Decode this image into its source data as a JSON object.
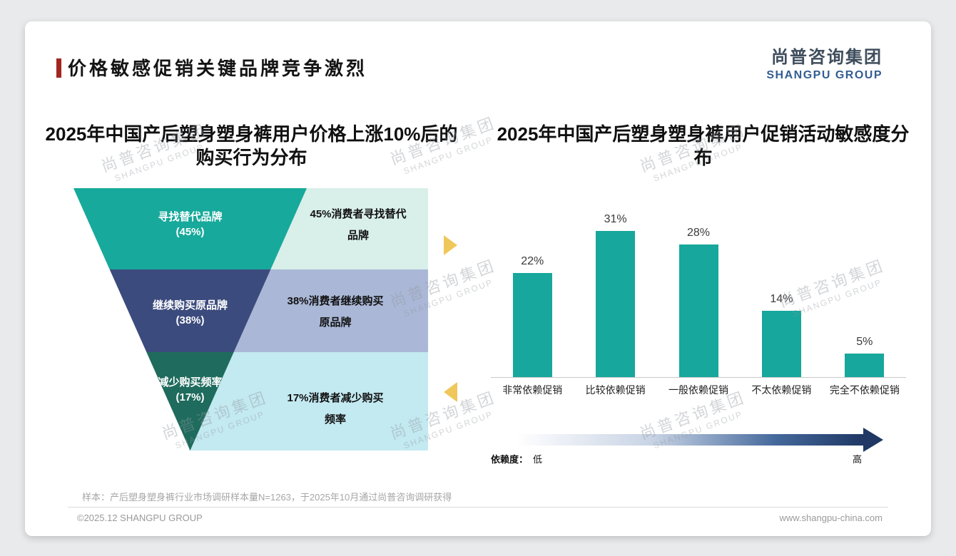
{
  "header": {
    "title": "价格敏感促销关键品牌竞争激烈",
    "logo_cn": "尚普咨询集团",
    "logo_en": "SHANGPU GROUP",
    "accent_color": "#a3251f"
  },
  "chart_data": [
    {
      "type": "funnel",
      "title": "2025年中国产后塑身塑身裤用户价格上涨10%后的购买行为分布",
      "stages": [
        {
          "label": "寻找替代品牌",
          "value": 45,
          "value_label": "(45%)",
          "annotation": "45%消费者寻找替代品牌"
        },
        {
          "label": "继续购买原品牌",
          "value": 38,
          "value_label": "(38%)",
          "annotation": "38%消费者继续购买原品牌"
        },
        {
          "label": "减少购买频率",
          "value": 17,
          "value_label": "(17%)",
          "annotation": "17%消费者减少购买频率"
        }
      ],
      "colors": [
        "#17a99b",
        "#3c4b7d",
        "#1f6b5d"
      ],
      "annotation_colors": [
        "#d9efe9",
        "#aab7d6",
        "#c3e9f1"
      ],
      "arrow_color": "#f0c75a"
    },
    {
      "type": "bar",
      "title": "2025年中国产后塑身塑身裤用户促销活动敏感度分布",
      "categories": [
        "非常依赖促销",
        "比较依赖促销",
        "一般依赖促销",
        "不太依赖促销",
        "完全不依赖促销"
      ],
      "values": [
        22,
        31,
        28,
        14,
        5
      ],
      "data_labels": [
        "22%",
        "31%",
        "28%",
        "14%",
        "5%"
      ],
      "bar_color": "#17a79c",
      "ylim": [
        0,
        35
      ],
      "grid": false,
      "legend_position": "none",
      "axis": {
        "label": "依赖度：",
        "low": "低",
        "high": "高"
      },
      "axis_gradient_end": "#1f3864"
    }
  ],
  "footer": {
    "sample_note": "样本：产后塑身塑身裤行业市场调研样本量N=1263，于2025年10月通过尚普咨询调研获得",
    "copyright": "©2025.12 SHANGPU GROUP",
    "website": "www.shangpu-china.com"
  },
  "watermark": {
    "cn": "尚普咨询集团",
    "en": "SHANGPU GROUP"
  }
}
